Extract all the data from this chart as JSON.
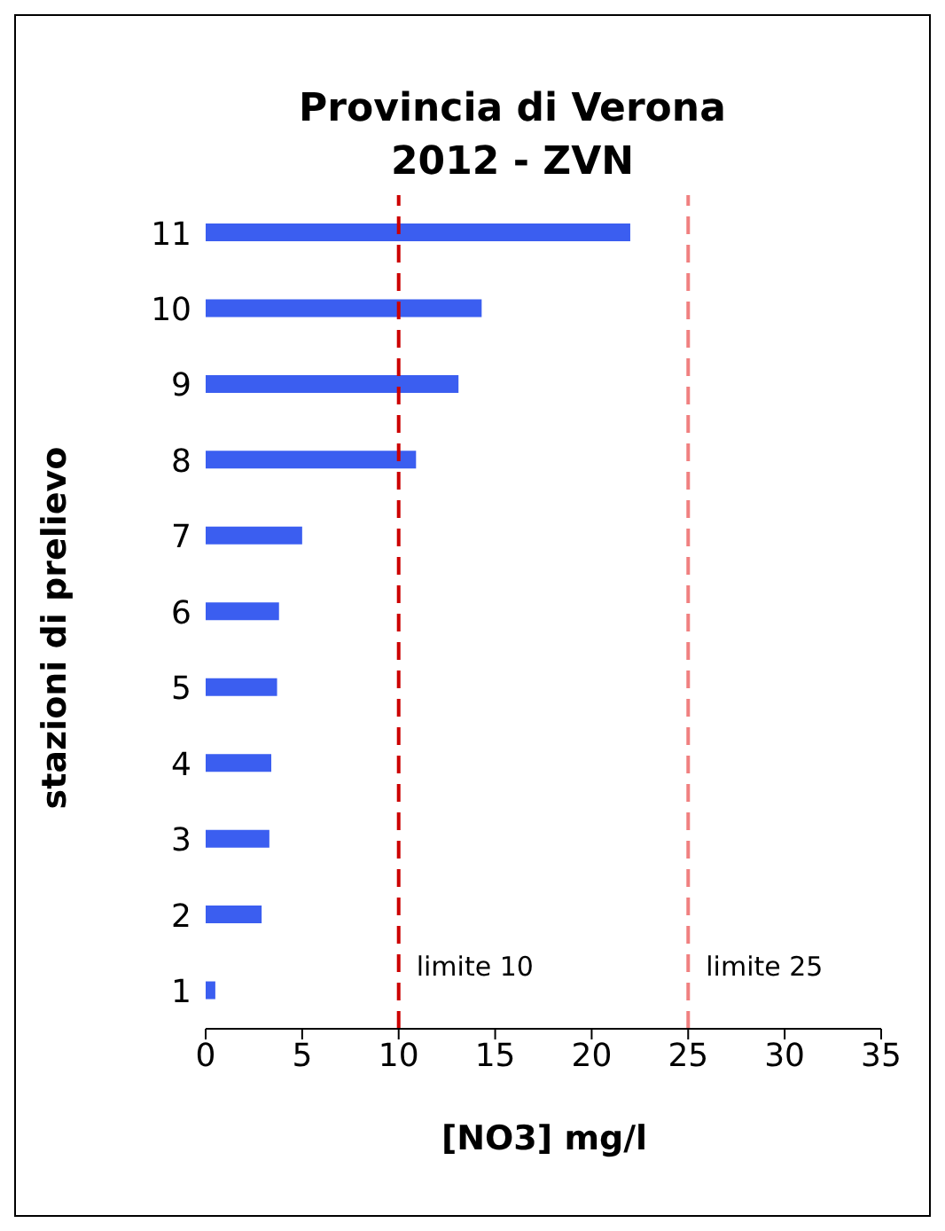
{
  "chart_data": {
    "type": "bar",
    "orientation": "horizontal",
    "title": "Provincia di Verona 2012 - ZVN",
    "xlabel": "[NO3] mg/l",
    "ylabel": "stazioni di prelievo",
    "categories": [
      "11",
      "10",
      "9",
      "8",
      "7",
      "6",
      "5",
      "4",
      "3",
      "2",
      "1"
    ],
    "series": [
      {
        "color": "#3b5ef0",
        "values": [
          22,
          14.3,
          13.1,
          10.9,
          5,
          3.8,
          3.7,
          3.4,
          3.3,
          2.9,
          0.5
        ]
      }
    ],
    "xlim": [
      0,
      35
    ],
    "xticks": [
      0,
      5,
      10,
      15,
      20,
      25,
      30,
      35
    ],
    "grid": false,
    "legend": false,
    "ref_lines": [
      {
        "axis": "x",
        "value": 10,
        "label": "limite 10",
        "color": "#cc0000",
        "line_style": "dashed"
      },
      {
        "axis": "x",
        "value": 25,
        "label": "limite 25",
        "color": "#f08080",
        "line_style": "dashed"
      }
    ]
  }
}
